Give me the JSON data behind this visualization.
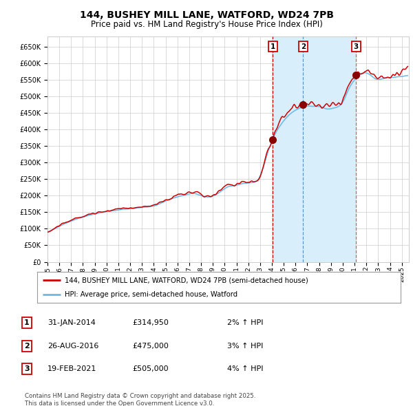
{
  "title": "144, BUSHEY MILL LANE, WATFORD, WD24 7PB",
  "subtitle": "Price paid vs. HM Land Registry's House Price Index (HPI)",
  "title_fontsize": 10,
  "subtitle_fontsize": 8.5,
  "ylabel_ticks": [
    "£0",
    "£50K",
    "£100K",
    "£150K",
    "£200K",
    "£250K",
    "£300K",
    "£350K",
    "£400K",
    "£450K",
    "£500K",
    "£550K",
    "£600K",
    "£650K"
  ],
  "ytick_values": [
    0,
    50000,
    100000,
    150000,
    200000,
    250000,
    300000,
    350000,
    400000,
    450000,
    500000,
    550000,
    600000,
    650000
  ],
  "ylim": [
    0,
    680000
  ],
  "year_start": 1995,
  "year_end": 2025,
  "xtick_years": [
    1995,
    1996,
    1997,
    1998,
    1999,
    2000,
    2001,
    2002,
    2003,
    2004,
    2005,
    2006,
    2007,
    2008,
    2009,
    2010,
    2011,
    2012,
    2013,
    2014,
    2015,
    2016,
    2017,
    2018,
    2019,
    2020,
    2021,
    2022,
    2023,
    2024,
    2025
  ],
  "hpi_line_color": "#6BB8E8",
  "price_line_color": "#CC0000",
  "transaction_marker_color": "#880000",
  "vline1_color": "#CC0000",
  "vline2_color": "#5599CC",
  "vline3_color": "#CC0000",
  "shade_color": "#D8EEFA",
  "grid_color": "#CCCCCC",
  "background_color": "#FFFFFF",
  "t1": 2014.07,
  "t2": 2016.65,
  "t3": 2021.12,
  "p1": 314950,
  "p2": 475000,
  "p3": 505000,
  "legend_entries": [
    "144, BUSHEY MILL LANE, WATFORD, WD24 7PB (semi-detached house)",
    "HPI: Average price, semi-detached house, Watford"
  ],
  "table_rows": [
    {
      "num": "1",
      "date": "31-JAN-2014",
      "price": "£314,950",
      "hpi": "2% ↑ HPI"
    },
    {
      "num": "2",
      "date": "26-AUG-2016",
      "price": "£475,000",
      "hpi": "3% ↑ HPI"
    },
    {
      "num": "3",
      "date": "19-FEB-2021",
      "price": "£505,000",
      "hpi": "4% ↑ HPI"
    }
  ],
  "footnote": "Contains HM Land Registry data © Crown copyright and database right 2025.\nThis data is licensed under the Open Government Licence v3.0."
}
